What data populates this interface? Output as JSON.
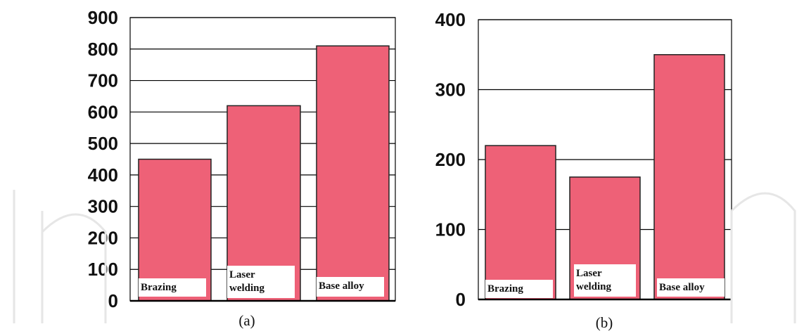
{
  "chart_data": [
    {
      "type": "bar",
      "caption": "(a)",
      "categories": [
        "Brazing",
        "Laser welding",
        "Base alloy"
      ],
      "category_label_lines": [
        [
          "Brazing"
        ],
        [
          "Laser",
          "welding"
        ],
        [
          "Base alloy"
        ]
      ],
      "values": [
        450,
        620,
        810
      ],
      "yticks": [
        "0",
        "100",
        "200",
        "300",
        "400",
        "500",
        "600",
        "700",
        "800",
        "900"
      ],
      "ylim": [
        0,
        900
      ],
      "grid": true,
      "bar_color": "#ee6177"
    },
    {
      "type": "bar",
      "caption": "(b)",
      "categories": [
        "Brazing",
        "Laser welding",
        "Base alloy"
      ],
      "category_label_lines": [
        [
          "Brazing"
        ],
        [
          "Laser",
          "welding"
        ],
        [
          "Base alloy"
        ]
      ],
      "values": [
        220,
        175,
        350
      ],
      "yticks": [
        "0",
        "100",
        "200",
        "300",
        "400"
      ],
      "ylim": [
        0,
        400
      ],
      "grid": true,
      "bar_color": "#ee6177"
    }
  ]
}
